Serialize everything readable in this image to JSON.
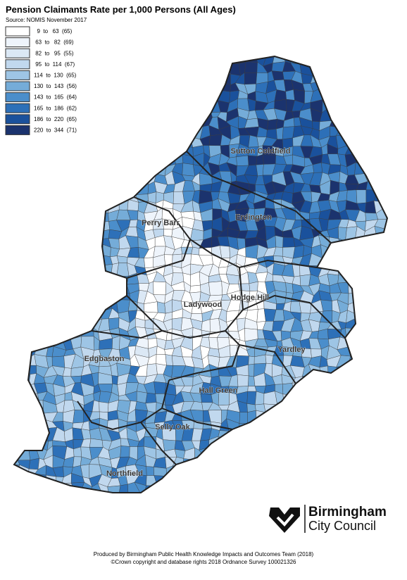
{
  "header": {
    "title": "Pension Claimants Rate per 1,000 Persons (All Ages)",
    "source": "Source: NOMIS November 2017"
  },
  "legend": [
    {
      "label": "  9  to   63  (65)",
      "color": "#ffffff"
    },
    {
      "label": " 63  to   82  (69)",
      "color": "#eef4fb"
    },
    {
      "label": " 82  to   95  (55)",
      "color": "#dbe8f5"
    },
    {
      "label": " 95  to  114  (67)",
      "color": "#c1d8ee"
    },
    {
      "label": "114  to  130  (65)",
      "color": "#9ec5e5"
    },
    {
      "label": "130  to  143  (56)",
      "color": "#75acd8"
    },
    {
      "label": "143  to  165  (64)",
      "color": "#4b8ecb"
    },
    {
      "label": "165  to  186  (62)",
      "color": "#2d70b8"
    },
    {
      "label": "186  to  220  (65)",
      "color": "#1a519c"
    },
    {
      "label": "220  to  344  (71)",
      "color": "#1b336e"
    }
  ],
  "districts": [
    "Sutton Coldfield",
    "Erdington",
    "Perry Barr",
    "Ladywood",
    "Hodge Hill",
    "Yardley",
    "Edgbaston",
    "Hall Green",
    "Selly Oak",
    "Northfield"
  ],
  "logo": {
    "line1": "Birmingham",
    "line2": "City Council"
  },
  "footer": [
    "Produced by Birmingham Public Health Knowledge Impacts and Outcomes Team (2018)",
    "©Crown copyright and database rights 2018 Ordnance Survey 100021326"
  ]
}
